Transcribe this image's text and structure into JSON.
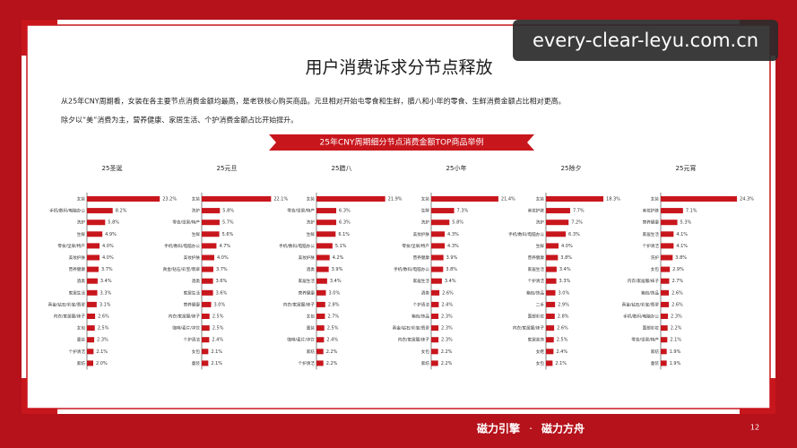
{
  "watermark": "every-clear-leyu.com.cn",
  "header": {
    "title": "用户消费诉求分节点释放"
  },
  "description": [
    "从25年CNY周期看，女装在各主要节点消费金额均最高，是老铁核心购买商品。元旦相对开始屯零食和生鲜，腊八和小年的零食、生鲜消费金额占比相对更高。",
    "除夕以“美”消费为主，营养健康、家居生活、个护消费金额占比开始提升。"
  ],
  "banner": "25年CNY周期细分节点消费金额TOP商品举例",
  "chart_data": [
    {
      "type": "bar",
      "orientation": "horizontal",
      "title": "25圣诞",
      "color": "#c8161d",
      "categories": [
        "女装",
        "手机/数码/电脑办公",
        "洗护",
        "生鲜",
        "零食/坚果/特产",
        "美妆护肤",
        "营养健康",
        "酒类",
        "家居生活",
        "真金/钻石/彩宝/翡翠",
        "内衣/家居服/袜子",
        "女包",
        "童装",
        "个护清洁",
        "家纺"
      ],
      "values": [
        23.2,
        8.2,
        5.8,
        4.9,
        4.0,
        4.0,
        3.7,
        3.4,
        3.3,
        3.1,
        2.6,
        2.5,
        2.3,
        2.1,
        2.0
      ],
      "value_labels": [
        "23.2%",
        "8.2%",
        "5.8%",
        "4.9%",
        "4.0%",
        "4.0%",
        "3.7%",
        "3.4%",
        "3.3%",
        "3.1%",
        "2.6%",
        "2.5%",
        "2.3%",
        "2.1%",
        "2.0%"
      ]
    },
    {
      "type": "bar",
      "orientation": "horizontal",
      "title": "25元旦",
      "color": "#c8161d",
      "categories": [
        "女装",
        "洗护",
        "零食/坚果/特产",
        "生鲜",
        "手机/数码/电脑办公",
        "美妆护肤",
        "真金/钻石/彩宝/翡翠",
        "酒类",
        "家居生活",
        "营养健康",
        "内衣/家居服/袜子",
        "咖啡/麦片/冲饮",
        "个护清洁",
        "女包",
        "童装"
      ],
      "values": [
        22.1,
        5.8,
        5.7,
        5.6,
        4.7,
        4.0,
        3.7,
        3.6,
        3.6,
        3.0,
        2.5,
        2.5,
        2.4,
        2.1,
        2.1
      ],
      "value_labels": [
        "22.1%",
        "5.8%",
        "5.7%",
        "5.6%",
        "4.7%",
        "4.0%",
        "3.7%",
        "3.6%",
        "3.6%",
        "3.0%",
        "2.5%",
        "2.5%",
        "2.4%",
        "2.1%",
        "2.1%"
      ]
    },
    {
      "type": "bar",
      "orientation": "horizontal",
      "title": "25腊八",
      "color": "#c8161d",
      "categories": [
        "女装",
        "零食/坚果/特产",
        "洗护",
        "生鲜",
        "手机/数码/电脑办公",
        "美妆护肤",
        "酒类",
        "家居生活",
        "营养健康",
        "内衣/家居服/袜子",
        "女包",
        "童装",
        "咖啡/麦片/冲饮",
        "家纺",
        "个护清洁"
      ],
      "values": [
        21.9,
        6.3,
        6.3,
        6.1,
        5.1,
        4.2,
        3.9,
        3.4,
        3.0,
        2.8,
        2.7,
        2.5,
        2.4,
        2.2,
        2.2
      ],
      "value_labels": [
        "21.9%",
        "6.3%",
        "6.3%",
        "6.1%",
        "5.1%",
        "4.2%",
        "3.9%",
        "3.4%",
        "3.0%",
        "2.8%",
        "2.7%",
        "2.5%",
        "2.4%",
        "2.2%",
        "2.2%"
      ]
    },
    {
      "type": "bar",
      "orientation": "horizontal",
      "title": "25小年",
      "color": "#c8161d",
      "categories": [
        "女装",
        "生鲜",
        "洗护",
        "美妆护肤",
        "零食/坚果/特产",
        "营养健康",
        "手机/数码/电脑办公",
        "家居生活",
        "酒类",
        "个护清洁",
        "箱包/饰品",
        "真金/钻石/彩宝/翡翠",
        "内衣/家居服/袜子",
        "女包",
        "家纺"
      ],
      "values": [
        21.4,
        7.3,
        5.8,
        4.3,
        4.3,
        3.9,
        3.8,
        3.4,
        2.6,
        2.4,
        2.3,
        2.3,
        2.3,
        2.2,
        2.2
      ],
      "value_labels": [
        "21.4%",
        "7.3%",
        "5.8%",
        "4.3%",
        "4.3%",
        "3.9%",
        "3.8%",
        "3.4%",
        "2.6%",
        "2.4%",
        "2.3%",
        "2.3%",
        "2.3%",
        "2.2%",
        "2.2%"
      ]
    },
    {
      "type": "bar",
      "orientation": "horizontal",
      "title": "25除夕",
      "color": "#c8161d",
      "categories": [
        "女装",
        "美妆护肤",
        "洗护",
        "手机/数码/电脑办公",
        "生鲜",
        "营养健康",
        "家居生活",
        "个护清洁",
        "箱包/饰品",
        "二手",
        "面部彩妆",
        "内衣/家居服/袜子",
        "家居装饰",
        "女鞋",
        "女包"
      ],
      "values": [
        18.3,
        7.7,
        7.2,
        6.3,
        4.0,
        3.8,
        3.4,
        3.3,
        3.0,
        2.9,
        2.8,
        2.6,
        2.5,
        2.4,
        2.1
      ],
      "value_labels": [
        "18.3%",
        "7.7%",
        "7.2%",
        "6.3%",
        "4.0%",
        "3.8%",
        "3.4%",
        "3.3%",
        "3.0%",
        "2.9%",
        "2.8%",
        "2.6%",
        "2.5%",
        "2.4%",
        "2.1%"
      ]
    },
    {
      "type": "bar",
      "orientation": "horizontal",
      "title": "25元宵",
      "color": "#c8161d",
      "categories": [
        "女装",
        "美妆护肤",
        "营养健康",
        "家居生活",
        "个护清洁",
        "洗护",
        "女包",
        "内衣/家居服/袜子",
        "箱包/饰品",
        "真金/钻石/彩宝/翡翠",
        "手机/数码/电脑办公",
        "面部彩妆",
        "零食/坚果/特产",
        "家纺",
        "童装"
      ],
      "values": [
        24.3,
        7.1,
        5.3,
        4.1,
        4.1,
        3.8,
        2.9,
        2.7,
        2.6,
        2.6,
        2.3,
        2.2,
        2.1,
        1.9,
        1.9
      ],
      "value_labels": [
        "24.3%",
        "7.1%",
        "5.3%",
        "4.1%",
        "4.1%",
        "3.8%",
        "2.9%",
        "2.7%",
        "2.6%",
        "2.6%",
        "2.3%",
        "2.2%",
        "2.1%",
        "1.9%",
        "1.9%"
      ]
    }
  ],
  "footer": {
    "brand1": "磁力引擎",
    "separator": "·",
    "brand2": "磁力方舟",
    "page": "12"
  }
}
